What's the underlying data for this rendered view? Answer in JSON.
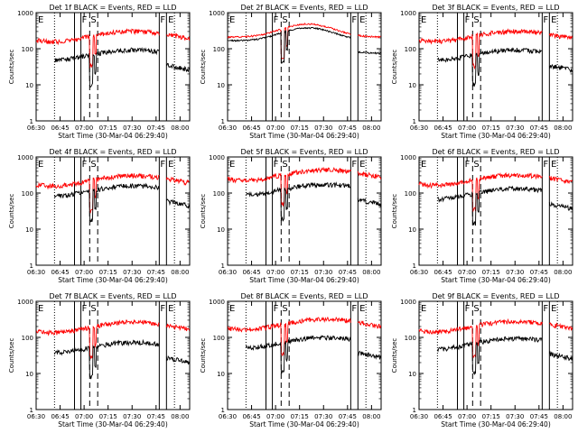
{
  "figure": {
    "ylabel": "Counts/sec",
    "xlabel": "Start Time (30-Mar-04 06:29:40)",
    "x_tick_labels": [
      "06:30",
      "06:45",
      "07:00",
      "07:15",
      "07:30",
      "07:45",
      "08:00"
    ],
    "y_tick_labels": [
      "1",
      "10",
      "100",
      "1000"
    ],
    "marker_labels": {
      "E": "E",
      "F": "F",
      "S": "S"
    },
    "colors": {
      "events": "#000000",
      "lld": "#ff0000",
      "axes": "#000000"
    }
  },
  "chart_data": [
    {
      "type": "line",
      "title": "Det 1f  BLACK = Events, RED = LLD",
      "x_unit": "minutes from 06:30",
      "xlim": [
        0,
        96
      ],
      "ylim": [
        1,
        1000
      ],
      "yscale": "log",
      "series": [
        {
          "name": "Events",
          "color": "#000000",
          "shape": "wavy",
          "level": 70,
          "start": 11.5
        },
        {
          "name": "LLD",
          "color": "#ff0000",
          "shape": "wavy",
          "level": 230,
          "start": 0
        }
      ]
    },
    {
      "type": "line",
      "title": "Det 2f  BLACK = Events, RED = LLD",
      "x_unit": "minutes from 06:30",
      "xlim": [
        0,
        96
      ],
      "ylim": [
        1,
        1000
      ],
      "yscale": "log",
      "series": [
        {
          "name": "Events",
          "color": "#000000",
          "shape": "hump",
          "level": 330,
          "start": 0
        },
        {
          "name": "LLD",
          "color": "#ff0000",
          "shape": "hump",
          "level": 420,
          "start": 0
        }
      ]
    },
    {
      "type": "line",
      "title": "Det 3f  BLACK = Events, RED = LLD",
      "x_unit": "minutes from 06:30",
      "xlim": [
        0,
        96
      ],
      "ylim": [
        1,
        1000
      ],
      "yscale": "log",
      "series": [
        {
          "name": "Events",
          "color": "#000000",
          "shape": "wavy",
          "level": 70,
          "start": 11.5
        },
        {
          "name": "LLD",
          "color": "#ff0000",
          "shape": "wavy",
          "level": 230,
          "start": 0
        }
      ]
    },
    {
      "type": "line",
      "title": "Det 4f  BLACK = Events, RED = LLD",
      "x_unit": "minutes from 06:30",
      "xlim": [
        0,
        96
      ],
      "ylim": [
        1,
        1000
      ],
      "yscale": "log",
      "series": [
        {
          "name": "Events",
          "color": "#000000",
          "shape": "wavy",
          "level": 120,
          "start": 11.5
        },
        {
          "name": "LLD",
          "color": "#ff0000",
          "shape": "wavy",
          "level": 230,
          "start": 0
        }
      ]
    },
    {
      "type": "line",
      "title": "Det 5f  BLACK = Events, RED = LLD",
      "x_unit": "minutes from 06:30",
      "xlim": [
        0,
        96
      ],
      "ylim": [
        1,
        1000
      ],
      "yscale": "log",
      "series": [
        {
          "name": "Events",
          "color": "#000000",
          "shape": "wavy",
          "level": 130,
          "start": 11.5
        },
        {
          "name": "LLD",
          "color": "#ff0000",
          "shape": "wavy",
          "level": 330,
          "start": 0
        }
      ]
    },
    {
      "type": "line",
      "title": "Det 6f  BLACK = Events, RED = LLD",
      "x_unit": "minutes from 06:30",
      "xlim": [
        0,
        96
      ],
      "ylim": [
        1,
        1000
      ],
      "yscale": "log",
      "series": [
        {
          "name": "Events",
          "color": "#000000",
          "shape": "wavy",
          "level": 100,
          "start": 11.5
        },
        {
          "name": "LLD",
          "color": "#ff0000",
          "shape": "wavy",
          "level": 240,
          "start": 0
        }
      ]
    },
    {
      "type": "line",
      "title": "Det 7f  BLACK = Events, RED = LLD",
      "x_unit": "minutes from 06:30",
      "xlim": [
        0,
        96
      ],
      "ylim": [
        1,
        1000
      ],
      "yscale": "log",
      "series": [
        {
          "name": "Events",
          "color": "#000000",
          "shape": "wavy",
          "level": 55,
          "start": 11.5
        },
        {
          "name": "LLD",
          "color": "#ff0000",
          "shape": "wavy",
          "level": 200,
          "start": 0
        }
      ]
    },
    {
      "type": "line",
      "title": "Det 8f  BLACK = Events, RED = LLD",
      "x_unit": "minutes from 06:30",
      "xlim": [
        0,
        96
      ],
      "ylim": [
        1,
        1000
      ],
      "yscale": "log",
      "series": [
        {
          "name": "Events",
          "color": "#000000",
          "shape": "wavy",
          "level": 75,
          "start": 11.5
        },
        {
          "name": "LLD",
          "color": "#ff0000",
          "shape": "wavy",
          "level": 240,
          "start": 0
        }
      ]
    },
    {
      "type": "line",
      "title": "Det 9f  BLACK = Events, RED = LLD",
      "x_unit": "minutes from 06:30",
      "xlim": [
        0,
        96
      ],
      "ylim": [
        1,
        1000
      ],
      "yscale": "log",
      "series": [
        {
          "name": "Events",
          "color": "#000000",
          "shape": "wavy",
          "level": 70,
          "start": 11.5
        },
        {
          "name": "LLD",
          "color": "#ff0000",
          "shape": "wavy",
          "level": 210,
          "start": 0
        }
      ]
    }
  ],
  "markers": [
    {
      "x": 11.5,
      "style": "dotted",
      "label": ""
    },
    {
      "x": 24.0,
      "style": "solid",
      "label": ""
    },
    {
      "x": 28.0,
      "style": "solid",
      "label": "F"
    },
    {
      "x": 33.5,
      "style": "dashed",
      "label": "S"
    },
    {
      "x": 38.5,
      "style": "dashed",
      "label": ""
    },
    {
      "x": 77.0,
      "style": "solid",
      "label": "F"
    },
    {
      "x": 81.5,
      "style": "solid",
      "label": ""
    },
    {
      "x": 86.5,
      "style": "dotted",
      "label": ""
    }
  ]
}
